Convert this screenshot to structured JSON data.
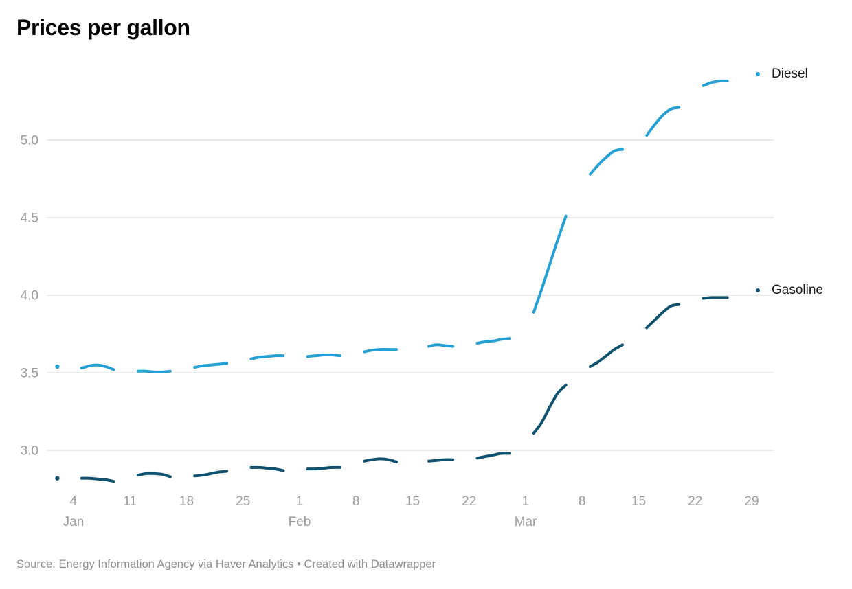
{
  "title": "Prices per gallon",
  "source_line": "Source: Energy Information Agency via Haver Analytics • Created with Datawrapper",
  "colors": {
    "diesel": "#25a0d4",
    "gasoline": "#0e5270",
    "grid": "#e4e4e4",
    "axis_text": "#9b9b9b",
    "title_text": "#000000",
    "legend_text": "#1a1a1a",
    "source_text": "#8e8e8e"
  },
  "legend": {
    "diesel_label": "Diesel",
    "gasoline_label": "Gasoline"
  },
  "chart_data": {
    "type": "line",
    "title": "Prices per gallon",
    "xlabel": "",
    "ylabel": "",
    "x_unit": "day of year (Jan 1 = 1), weekday segments with weekend gaps",
    "xlim": [
      0,
      90
    ],
    "ylim": [
      2.75,
      5.5
    ],
    "grid": "horizontal",
    "legend_position": "right-of-line-ends",
    "y_ticks": [
      5.0,
      4.5,
      4.0,
      3.5,
      3.0
    ],
    "x_ticks": [
      {
        "day": 3,
        "label": "4"
      },
      {
        "day": 10,
        "label": "11"
      },
      {
        "day": 17,
        "label": "18"
      },
      {
        "day": 24,
        "label": "25"
      },
      {
        "day": 31,
        "label": "1"
      },
      {
        "day": 38,
        "label": "8"
      },
      {
        "day": 45,
        "label": "15"
      },
      {
        "day": 52,
        "label": "22"
      },
      {
        "day": 59,
        "label": "1"
      },
      {
        "day": 66,
        "label": "8"
      },
      {
        "day": 73,
        "label": "15"
      },
      {
        "day": 80,
        "label": "22"
      },
      {
        "day": 87,
        "label": "29"
      }
    ],
    "month_labels": [
      {
        "day": 3,
        "label": "Jan"
      },
      {
        "day": 31,
        "label": "Feb"
      },
      {
        "day": 59,
        "label": "Mar"
      }
    ],
    "series": [
      {
        "name": "Diesel",
        "color_key": "diesel",
        "points": [
          [
            1,
            3.54
          ],
          [
            4,
            3.53
          ],
          [
            5,
            3.545
          ],
          [
            6,
            3.55
          ],
          [
            7,
            3.54
          ],
          [
            8,
            3.52
          ],
          [
            11,
            3.51
          ],
          [
            12,
            3.51
          ],
          [
            13,
            3.505
          ],
          [
            14,
            3.505
          ],
          [
            15,
            3.51
          ],
          [
            18,
            3.535
          ],
          [
            19,
            3.545
          ],
          [
            20,
            3.55
          ],
          [
            21,
            3.555
          ],
          [
            22,
            3.56
          ],
          [
            25,
            3.59
          ],
          [
            26,
            3.6
          ],
          [
            27,
            3.605
          ],
          [
            28,
            3.61
          ],
          [
            29,
            3.61
          ],
          [
            32,
            3.605
          ],
          [
            33,
            3.61
          ],
          [
            34,
            3.615
          ],
          [
            35,
            3.615
          ],
          [
            36,
            3.61
          ],
          [
            39,
            3.635
          ],
          [
            40,
            3.645
          ],
          [
            41,
            3.65
          ],
          [
            42,
            3.65
          ],
          [
            43,
            3.65
          ],
          [
            47,
            3.67
          ],
          [
            48,
            3.68
          ],
          [
            49,
            3.675
          ],
          [
            50,
            3.67
          ],
          [
            53,
            3.69
          ],
          [
            54,
            3.7
          ],
          [
            55,
            3.705
          ],
          [
            56,
            3.715
          ],
          [
            57,
            3.72
          ],
          [
            60,
            3.89
          ],
          [
            61,
            4.04
          ],
          [
            62,
            4.2
          ],
          [
            63,
            4.36
          ],
          [
            64,
            4.51
          ],
          [
            67,
            4.78
          ],
          [
            68,
            4.84
          ],
          [
            69,
            4.89
          ],
          [
            70,
            4.93
          ],
          [
            71,
            4.94
          ],
          [
            74,
            5.03
          ],
          [
            75,
            5.1
          ],
          [
            76,
            5.16
          ],
          [
            77,
            5.2
          ],
          [
            78,
            5.21
          ],
          [
            81,
            5.35
          ],
          [
            82,
            5.37
          ],
          [
            83,
            5.38
          ],
          [
            84,
            5.38
          ]
        ]
      },
      {
        "name": "Gasoline",
        "color_key": "gasoline",
        "points": [
          [
            1,
            2.82
          ],
          [
            4,
            2.82
          ],
          [
            5,
            2.82
          ],
          [
            6,
            2.815
          ],
          [
            7,
            2.81
          ],
          [
            8,
            2.8
          ],
          [
            11,
            2.84
          ],
          [
            12,
            2.85
          ],
          [
            13,
            2.85
          ],
          [
            14,
            2.845
          ],
          [
            15,
            2.83
          ],
          [
            18,
            2.835
          ],
          [
            19,
            2.84
          ],
          [
            20,
            2.85
          ],
          [
            21,
            2.86
          ],
          [
            22,
            2.865
          ],
          [
            25,
            2.89
          ],
          [
            26,
            2.89
          ],
          [
            27,
            2.885
          ],
          [
            28,
            2.88
          ],
          [
            29,
            2.87
          ],
          [
            32,
            2.88
          ],
          [
            33,
            2.88
          ],
          [
            34,
            2.885
          ],
          [
            35,
            2.89
          ],
          [
            36,
            2.89
          ],
          [
            39,
            2.93
          ],
          [
            40,
            2.94
          ],
          [
            41,
            2.945
          ],
          [
            42,
            2.94
          ],
          [
            43,
            2.925
          ],
          [
            47,
            2.93
          ],
          [
            48,
            2.935
          ],
          [
            49,
            2.94
          ],
          [
            50,
            2.94
          ],
          [
            53,
            2.95
          ],
          [
            54,
            2.96
          ],
          [
            55,
            2.97
          ],
          [
            56,
            2.98
          ],
          [
            57,
            2.98
          ],
          [
            60,
            3.11
          ],
          [
            61,
            3.18
          ],
          [
            62,
            3.28
          ],
          [
            63,
            3.37
          ],
          [
            64,
            3.42
          ],
          [
            67,
            3.54
          ],
          [
            68,
            3.57
          ],
          [
            69,
            3.61
          ],
          [
            70,
            3.65
          ],
          [
            71,
            3.68
          ],
          [
            74,
            3.79
          ],
          [
            75,
            3.84
          ],
          [
            76,
            3.89
          ],
          [
            77,
            3.93
          ],
          [
            78,
            3.94
          ],
          [
            81,
            3.98
          ],
          [
            82,
            3.985
          ],
          [
            83,
            3.985
          ],
          [
            84,
            3.985
          ]
        ]
      }
    ]
  }
}
